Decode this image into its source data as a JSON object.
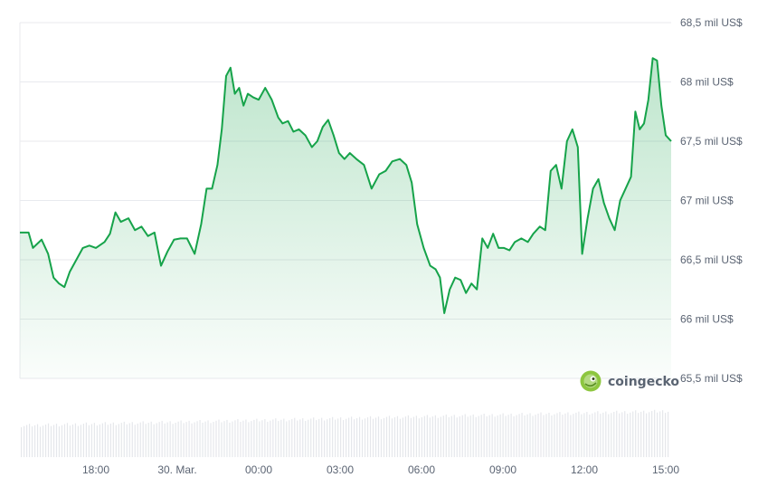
{
  "chart_data": {
    "type": "line",
    "series": [
      {
        "color": "#16a34a",
        "fill": "area-gradient",
        "points": [
          [
            0,
            66.73
          ],
          [
            0.8,
            66.73
          ],
          [
            1.2,
            66.6
          ],
          [
            2,
            66.67
          ],
          [
            2.6,
            66.55
          ],
          [
            3.1,
            66.35
          ],
          [
            3.6,
            66.3
          ],
          [
            4.1,
            66.27
          ],
          [
            4.6,
            66.4
          ],
          [
            5.2,
            66.5
          ],
          [
            5.8,
            66.6
          ],
          [
            6.4,
            66.62
          ],
          [
            7,
            66.6
          ],
          [
            7.8,
            66.65
          ],
          [
            8.3,
            66.72
          ],
          [
            8.8,
            66.9
          ],
          [
            9.3,
            66.82
          ],
          [
            10,
            66.85
          ],
          [
            10.6,
            66.75
          ],
          [
            11.2,
            66.78
          ],
          [
            11.8,
            66.7
          ],
          [
            12.4,
            66.73
          ],
          [
            13,
            66.45
          ],
          [
            13.6,
            66.57
          ],
          [
            14.2,
            66.67
          ],
          [
            14.8,
            66.68
          ],
          [
            15.4,
            66.68
          ],
          [
            16.1,
            66.55
          ],
          [
            16.7,
            66.8
          ],
          [
            17.2,
            67.1
          ],
          [
            17.7,
            67.1
          ],
          [
            18.2,
            67.3
          ],
          [
            18.6,
            67.6
          ],
          [
            19,
            68.05
          ],
          [
            19.4,
            68.12
          ],
          [
            19.8,
            67.9
          ],
          [
            20.2,
            67.95
          ],
          [
            20.6,
            67.8
          ],
          [
            21,
            67.9
          ],
          [
            21.5,
            67.87
          ],
          [
            22,
            67.85
          ],
          [
            22.6,
            67.95
          ],
          [
            23.2,
            67.85
          ],
          [
            23.8,
            67.7
          ],
          [
            24.2,
            67.65
          ],
          [
            24.7,
            67.67
          ],
          [
            25.2,
            67.58
          ],
          [
            25.7,
            67.6
          ],
          [
            26.3,
            67.55
          ],
          [
            26.9,
            67.45
          ],
          [
            27.4,
            67.5
          ],
          [
            27.9,
            67.62
          ],
          [
            28.4,
            67.68
          ],
          [
            28.9,
            67.55
          ],
          [
            29.4,
            67.4
          ],
          [
            29.9,
            67.35
          ],
          [
            30.4,
            67.4
          ],
          [
            31,
            67.35
          ],
          [
            31.7,
            67.3
          ],
          [
            32.4,
            67.1
          ],
          [
            33.1,
            67.22
          ],
          [
            33.7,
            67.25
          ],
          [
            34.3,
            67.33
          ],
          [
            35,
            67.35
          ],
          [
            35.6,
            67.3
          ],
          [
            36.1,
            67.15
          ],
          [
            36.6,
            66.8
          ],
          [
            37.2,
            66.6
          ],
          [
            37.8,
            66.45
          ],
          [
            38.3,
            66.42
          ],
          [
            38.7,
            66.35
          ],
          [
            39.1,
            66.05
          ],
          [
            39.6,
            66.25
          ],
          [
            40.1,
            66.35
          ],
          [
            40.6,
            66.33
          ],
          [
            41.1,
            66.22
          ],
          [
            41.6,
            66.3
          ],
          [
            42.1,
            66.25
          ],
          [
            42.6,
            66.68
          ],
          [
            43.1,
            66.6
          ],
          [
            43.6,
            66.72
          ],
          [
            44.1,
            66.6
          ],
          [
            44.6,
            66.6
          ],
          [
            45.1,
            66.58
          ],
          [
            45.6,
            66.65
          ],
          [
            46.2,
            66.68
          ],
          [
            46.8,
            66.65
          ],
          [
            47.3,
            66.72
          ],
          [
            47.9,
            66.78
          ],
          [
            48.4,
            66.75
          ],
          [
            48.9,
            67.25
          ],
          [
            49.4,
            67.3
          ],
          [
            49.9,
            67.1
          ],
          [
            50.4,
            67.5
          ],
          [
            50.9,
            67.6
          ],
          [
            51.4,
            67.45
          ],
          [
            51.8,
            66.55
          ],
          [
            52.3,
            66.85
          ],
          [
            52.8,
            67.1
          ],
          [
            53.3,
            67.18
          ],
          [
            53.8,
            66.98
          ],
          [
            54.3,
            66.85
          ],
          [
            54.8,
            66.75
          ],
          [
            55.3,
            67.0
          ],
          [
            55.8,
            67.1
          ],
          [
            56.3,
            67.2
          ],
          [
            56.7,
            67.75
          ],
          [
            57.1,
            67.6
          ],
          [
            57.5,
            67.65
          ],
          [
            57.9,
            67.85
          ],
          [
            58.3,
            68.2
          ],
          [
            58.7,
            68.18
          ],
          [
            59.1,
            67.8
          ],
          [
            59.5,
            67.55
          ],
          [
            60,
            67.5
          ]
        ]
      }
    ],
    "ylim": [
      65.5,
      68.5
    ],
    "xlim": [
      0,
      60
    ],
    "yticks": [
      {
        "value": 68.5,
        "label": "68,5 mil US$"
      },
      {
        "value": 68.0,
        "label": "68 mil US$"
      },
      {
        "value": 67.5,
        "label": "67,5 mil US$"
      },
      {
        "value": 67.0,
        "label": "67 mil US$"
      },
      {
        "value": 66.5,
        "label": "66,5 mil US$"
      },
      {
        "value": 66.0,
        "label": "66 mil US$"
      },
      {
        "value": 65.5,
        "label": "65,5 mil US$"
      }
    ],
    "xticks": [
      {
        "value": 7,
        "label": "18:00"
      },
      {
        "value": 14.5,
        "label": "30. Mar."
      },
      {
        "value": 22,
        "label": "00:00"
      },
      {
        "value": 29.5,
        "label": "03:00"
      },
      {
        "value": 37,
        "label": "06:00"
      },
      {
        "value": 44.5,
        "label": "09:00"
      },
      {
        "value": 52,
        "label": "12:00"
      },
      {
        "value": 59.5,
        "label": "15:00"
      }
    ],
    "grid": true,
    "volume_bars": true
  },
  "brand": {
    "name": "coingecko",
    "logo_icon": "gecko-icon",
    "logo_color": "#8dc63f"
  },
  "colors": {
    "line": "#16a34a",
    "grid": "#e8eaee",
    "axis_text": "#5b6473",
    "volume": "#e5e7eb"
  }
}
